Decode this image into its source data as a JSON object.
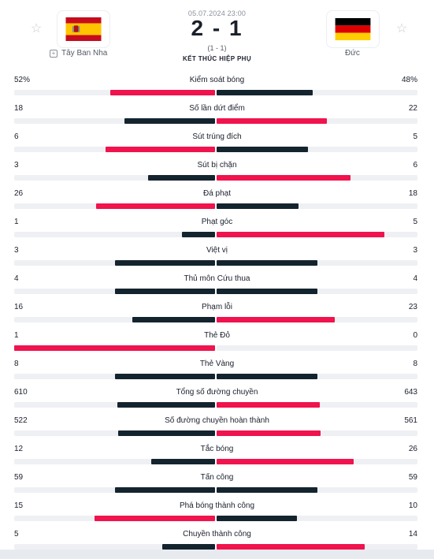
{
  "match": {
    "date": "05.07.2024 23:00",
    "score": "2 - 1",
    "half_score": "(1 - 1)",
    "status": "KẾT THÚC HIỆP PHỤ"
  },
  "home": {
    "name": "Tây Ban Nha",
    "flag_icon": "spain-flag-icon"
  },
  "away": {
    "name": "Đức",
    "flag_icon": "germany-flag-icon"
  },
  "colors": {
    "leader": "#f0134d",
    "trailer": "#14242f",
    "track": "#eef0f3"
  },
  "stats": [
    {
      "label": "Kiểm soát bóng",
      "home": "52%",
      "away": "48%",
      "home_val": 52,
      "away_val": 48
    },
    {
      "label": "Số lần dứt điểm",
      "home": "18",
      "away": "22",
      "home_val": 18,
      "away_val": 22
    },
    {
      "label": "Sút trúng đích",
      "home": "6",
      "away": "5",
      "home_val": 6,
      "away_val": 5
    },
    {
      "label": "Sút bị chặn",
      "home": "3",
      "away": "6",
      "home_val": 3,
      "away_val": 6
    },
    {
      "label": "Đá phạt",
      "home": "26",
      "away": "18",
      "home_val": 26,
      "away_val": 18
    },
    {
      "label": "Phạt góc",
      "home": "1",
      "away": "5",
      "home_val": 1,
      "away_val": 5
    },
    {
      "label": "Việt vị",
      "home": "3",
      "away": "3",
      "home_val": 3,
      "away_val": 3
    },
    {
      "label": "Thủ môn Cứu thua",
      "home": "4",
      "away": "4",
      "home_val": 4,
      "away_val": 4
    },
    {
      "label": "Phạm lỗi",
      "home": "16",
      "away": "23",
      "home_val": 16,
      "away_val": 23
    },
    {
      "label": "Thẻ Đỏ",
      "home": "1",
      "away": "0",
      "home_val": 1,
      "away_val": 0
    },
    {
      "label": "Thẻ Vàng",
      "home": "8",
      "away": "8",
      "home_val": 8,
      "away_val": 8
    },
    {
      "label": "Tổng số đường chuyền",
      "home": "610",
      "away": "643",
      "home_val": 610,
      "away_val": 643
    },
    {
      "label": "Số đường chuyền hoàn thành",
      "home": "522",
      "away": "561",
      "home_val": 522,
      "away_val": 561
    },
    {
      "label": "Tắc bóng",
      "home": "12",
      "away": "26",
      "home_val": 12,
      "away_val": 26
    },
    {
      "label": "Tấn công",
      "home": "59",
      "away": "59",
      "home_val": 59,
      "away_val": 59
    },
    {
      "label": "Phá bóng thành công",
      "home": "15",
      "away": "10",
      "home_val": 15,
      "away_val": 10
    },
    {
      "label": "Chuyền thành công",
      "home": "5",
      "away": "14",
      "home_val": 5,
      "away_val": 14
    }
  ]
}
